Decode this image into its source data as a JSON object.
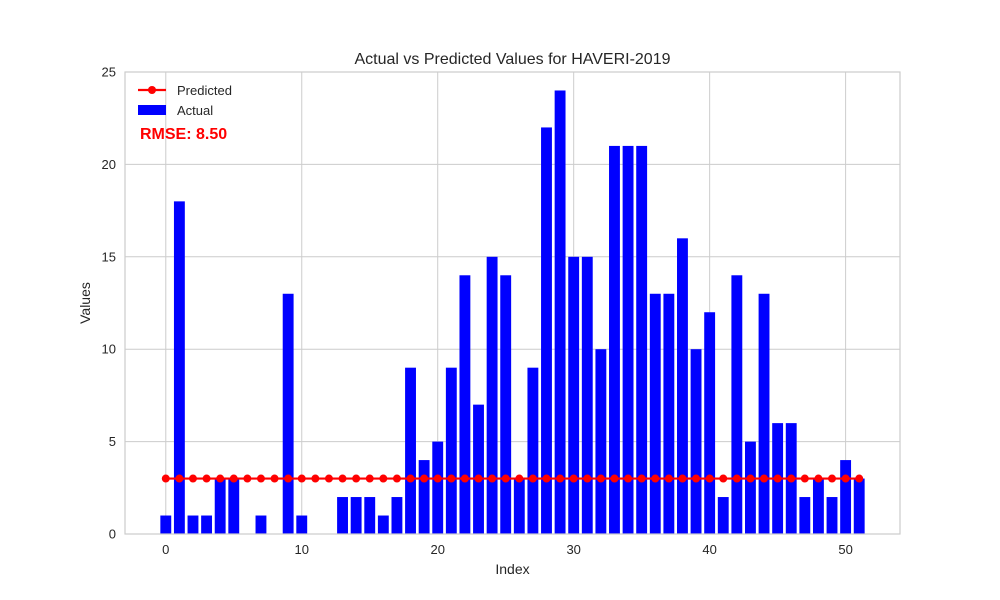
{
  "chart_data": {
    "type": "bar",
    "title": "Actual vs Predicted Values for HAVERI-2019",
    "xlabel": "Index",
    "ylabel": "Values",
    "xlim": [
      -3,
      54
    ],
    "ylim": [
      0,
      25
    ],
    "xticks": [
      0,
      10,
      20,
      30,
      40,
      50
    ],
    "yticks": [
      0,
      5,
      10,
      15,
      20,
      25
    ],
    "grid": true,
    "legend_position": "top-left",
    "colors": {
      "actual": "#0000ff",
      "predicted": "#ff0000",
      "rmse": "#ff0000",
      "grid": "#cccccc",
      "axes": "#cccccc"
    },
    "series": [
      {
        "name": "Actual",
        "kind": "bar",
        "x": [
          0,
          1,
          2,
          3,
          4,
          5,
          6,
          7,
          8,
          9,
          10,
          11,
          12,
          13,
          14,
          15,
          16,
          17,
          18,
          19,
          20,
          21,
          22,
          23,
          24,
          25,
          26,
          27,
          28,
          29,
          30,
          31,
          32,
          33,
          34,
          35,
          36,
          37,
          38,
          39,
          40,
          41,
          42,
          43,
          44,
          45,
          46,
          47,
          48,
          49,
          50,
          51
        ],
        "values": [
          1,
          18,
          1,
          1,
          3,
          3,
          0,
          1,
          0,
          13,
          1,
          0,
          0,
          2,
          2,
          2,
          1,
          2,
          9,
          4,
          5,
          9,
          14,
          7,
          15,
          14,
          3,
          9,
          22,
          24,
          15,
          15,
          10,
          21,
          21,
          21,
          13,
          13,
          16,
          10,
          12,
          2,
          14,
          5,
          13,
          6,
          6,
          2,
          3,
          2,
          4,
          3
        ]
      },
      {
        "name": "Predicted",
        "kind": "line",
        "x": [
          0,
          1,
          2,
          3,
          4,
          5,
          6,
          7,
          8,
          9,
          10,
          11,
          12,
          13,
          14,
          15,
          16,
          17,
          18,
          19,
          20,
          21,
          22,
          23,
          24,
          25,
          26,
          27,
          28,
          29,
          30,
          31,
          32,
          33,
          34,
          35,
          36,
          37,
          38,
          39,
          40,
          41,
          42,
          43,
          44,
          45,
          46,
          47,
          48,
          49,
          50,
          51
        ],
        "values": [
          3,
          3,
          3,
          3,
          3,
          3,
          3,
          3,
          3,
          3,
          3,
          3,
          3,
          3,
          3,
          3,
          3,
          3,
          3,
          3,
          3,
          3,
          3,
          3,
          3,
          3,
          3,
          3,
          3,
          3,
          3,
          3,
          3,
          3,
          3,
          3,
          3,
          3,
          3,
          3,
          3,
          3,
          3,
          3,
          3,
          3,
          3,
          3,
          3,
          3,
          3,
          3
        ]
      }
    ],
    "annotation": "RMSE: 8.50"
  }
}
